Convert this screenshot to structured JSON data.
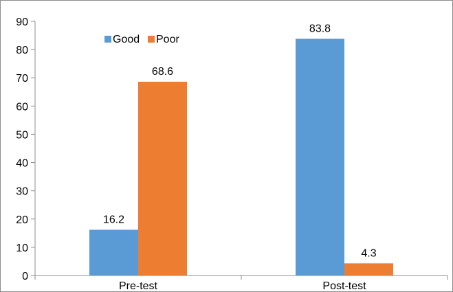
{
  "chart_data": {
    "type": "bar",
    "categories": [
      "Pre-test",
      "Post-test"
    ],
    "series": [
      {
        "name": "Good",
        "values": [
          16.2,
          83.8
        ],
        "color": "#5b9bd5"
      },
      {
        "name": "Poor",
        "values": [
          68.6,
          4.3
        ],
        "color": "#ed7d31"
      }
    ],
    "data_labels": [
      [
        "16.2",
        "83.8"
      ],
      [
        "68.6",
        "4.3"
      ]
    ],
    "ylim": [
      0,
      90
    ],
    "yticks": [
      0,
      10,
      20,
      30,
      40,
      50,
      60,
      70,
      80,
      90
    ],
    "title": "",
    "xlabel": "",
    "ylabel": "",
    "legend_position": "top-left",
    "grid": false
  }
}
